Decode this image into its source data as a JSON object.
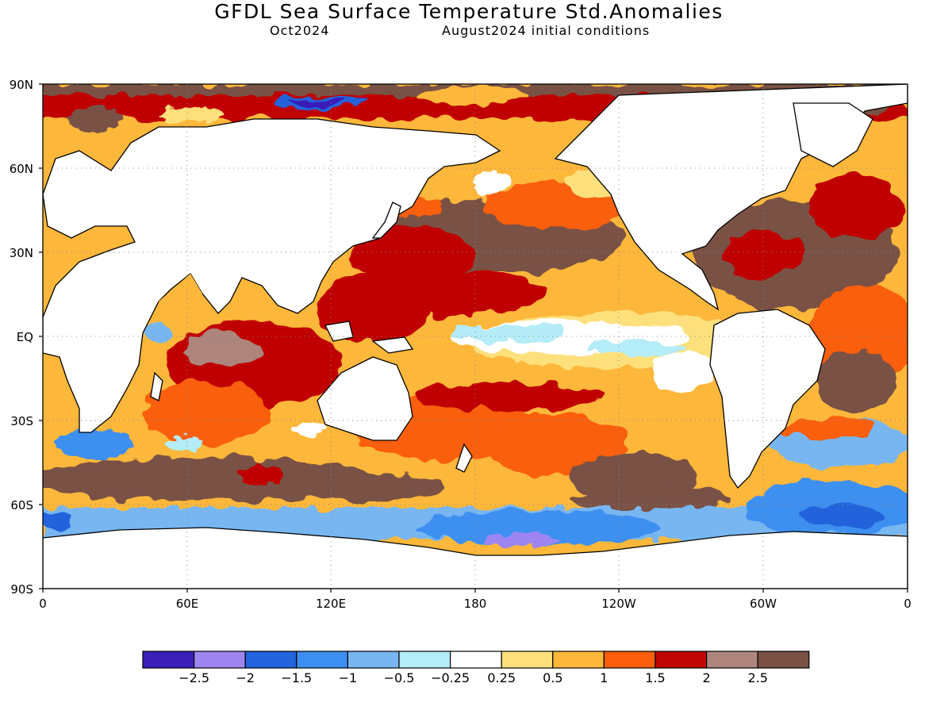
{
  "header": {
    "title": "GFDL Sea Surface Temperature Std.Anomalies",
    "forecast_month": "Oct2024",
    "initial_conditions": "August2024 initial conditions"
  },
  "map": {
    "lat_labels": [
      "90N",
      "60N",
      "30N",
      "EQ",
      "30S",
      "60S",
      "90S"
    ],
    "lon_labels": [
      "0",
      "60E",
      "120E",
      "180",
      "120W",
      "60W",
      "0"
    ]
  },
  "colorbar": {
    "colors": [
      "#3a1fb8",
      "#9d86f2",
      "#2363dc",
      "#3c8ff0",
      "#78b6f2",
      "#b4ecf8",
      "#ffffff",
      "#fde07c",
      "#fdb73a",
      "#fa5e0c",
      "#c00505",
      "#ad857c",
      "#7a5145"
    ],
    "labels": [
      "−2.5",
      "−2",
      "−1.5",
      "−1",
      "−0.5",
      "−0.25",
      "0.25",
      "0.5",
      "1",
      "1.5",
      "2",
      "2.5"
    ]
  }
}
